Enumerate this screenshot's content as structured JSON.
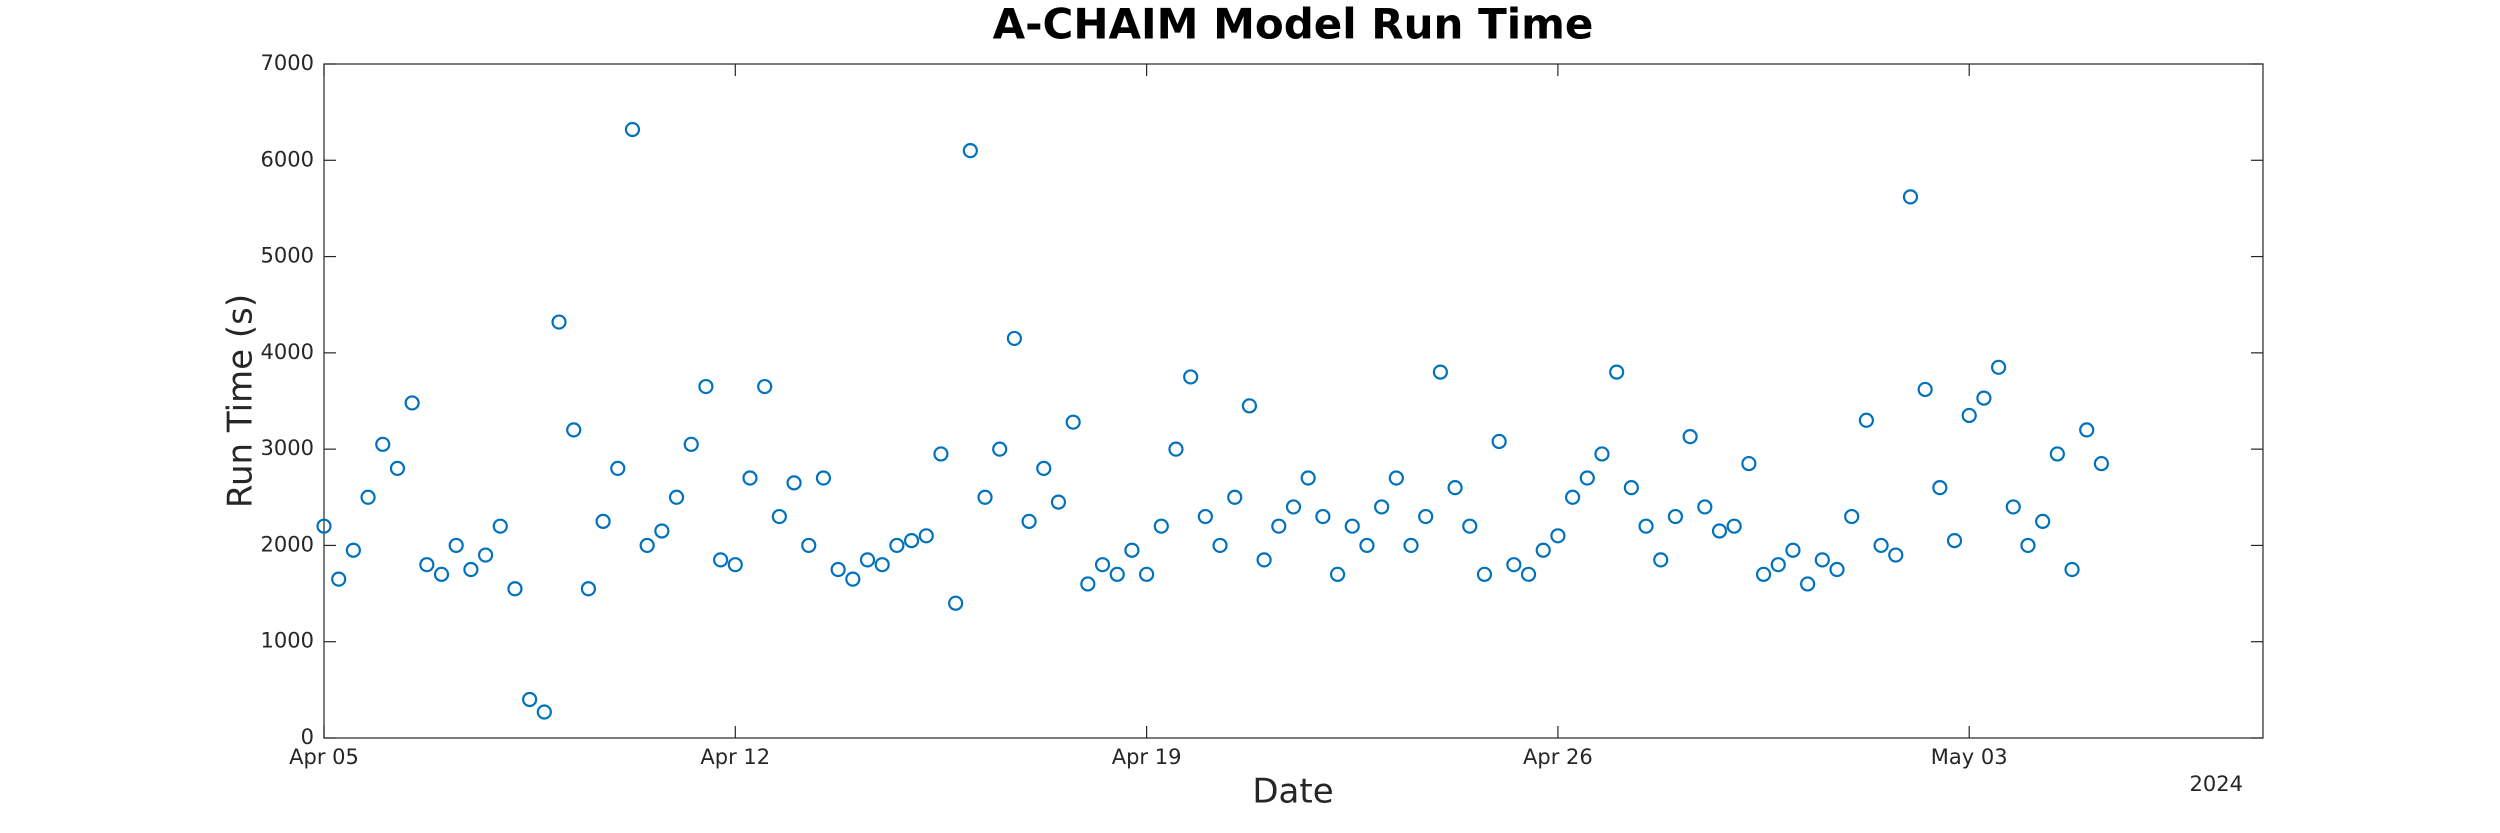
{
  "chart_data": {
    "type": "scatter",
    "title": "A-CHAIM Model Run Time",
    "x_label": "Date",
    "y_label": "Run Time (s)",
    "x_year_label": "2024",
    "color": "#0072bd",
    "grid": false,
    "xlim": [
      "2024-04-05T00:00",
      "2024-05-08T00:00"
    ],
    "xticks": [
      {
        "value": "2024-04-05T00:00",
        "label": "Apr 05"
      },
      {
        "value": "2024-04-12T00:00",
        "label": "Apr 12"
      },
      {
        "value": "2024-04-19T00:00",
        "label": "Apr 19"
      },
      {
        "value": "2024-04-26T00:00",
        "label": "Apr 26"
      },
      {
        "value": "2024-05-03T00:00",
        "label": "May 03"
      }
    ],
    "ylim": [
      0,
      7000
    ],
    "yticks": [
      0,
      1000,
      2000,
      3000,
      4000,
      5000,
      6000,
      7000
    ],
    "x": [
      "2024-04-05T00:00",
      "2024-04-05T06:00",
      "2024-04-05T12:00",
      "2024-04-05T18:00",
      "2024-04-06T00:00",
      "2024-04-06T06:00",
      "2024-04-06T12:00",
      "2024-04-06T18:00",
      "2024-04-07T00:00",
      "2024-04-07T06:00",
      "2024-04-07T12:00",
      "2024-04-07T18:00",
      "2024-04-08T00:00",
      "2024-04-08T06:00",
      "2024-04-08T12:00",
      "2024-04-08T18:00",
      "2024-04-09T00:00",
      "2024-04-09T06:00",
      "2024-04-09T12:00",
      "2024-04-09T18:00",
      "2024-04-10T00:00",
      "2024-04-10T06:00",
      "2024-04-10T12:00",
      "2024-04-10T18:00",
      "2024-04-11T00:00",
      "2024-04-11T06:00",
      "2024-04-11T12:00",
      "2024-04-11T18:00",
      "2024-04-12T00:00",
      "2024-04-12T06:00",
      "2024-04-12T12:00",
      "2024-04-12T18:00",
      "2024-04-13T00:00",
      "2024-04-13T06:00",
      "2024-04-13T12:00",
      "2024-04-13T18:00",
      "2024-04-14T00:00",
      "2024-04-14T06:00",
      "2024-04-14T12:00",
      "2024-04-14T18:00",
      "2024-04-15T00:00",
      "2024-04-15T06:00",
      "2024-04-15T12:00",
      "2024-04-15T18:00",
      "2024-04-16T00:00",
      "2024-04-16T06:00",
      "2024-04-16T12:00",
      "2024-04-16T18:00",
      "2024-04-17T00:00",
      "2024-04-17T06:00",
      "2024-04-17T12:00",
      "2024-04-17T18:00",
      "2024-04-18T00:00",
      "2024-04-18T06:00",
      "2024-04-18T12:00",
      "2024-04-18T18:00",
      "2024-04-19T00:00",
      "2024-04-19T06:00",
      "2024-04-19T12:00",
      "2024-04-19T18:00",
      "2024-04-20T00:00",
      "2024-04-20T06:00",
      "2024-04-20T12:00",
      "2024-04-20T18:00",
      "2024-04-21T00:00",
      "2024-04-21T06:00",
      "2024-04-21T12:00",
      "2024-04-21T18:00",
      "2024-04-22T00:00",
      "2024-04-22T06:00",
      "2024-04-22T12:00",
      "2024-04-22T18:00",
      "2024-04-23T00:00",
      "2024-04-23T06:00",
      "2024-04-23T12:00",
      "2024-04-23T18:00",
      "2024-04-24T00:00",
      "2024-04-24T06:00",
      "2024-04-24T12:00",
      "2024-04-24T18:00",
      "2024-04-25T00:00",
      "2024-04-25T06:00",
      "2024-04-25T12:00",
      "2024-04-25T18:00",
      "2024-04-26T00:00",
      "2024-04-26T06:00",
      "2024-04-26T12:00",
      "2024-04-26T18:00",
      "2024-04-27T00:00",
      "2024-04-27T06:00",
      "2024-04-27T12:00",
      "2024-04-27T18:00",
      "2024-04-28T00:00",
      "2024-04-28T06:00",
      "2024-04-28T12:00",
      "2024-04-28T18:00",
      "2024-04-29T00:00",
      "2024-04-29T06:00",
      "2024-04-29T12:00",
      "2024-04-29T18:00",
      "2024-04-30T00:00",
      "2024-04-30T06:00",
      "2024-04-30T12:00",
      "2024-04-30T18:00",
      "2024-05-01T00:00",
      "2024-05-01T06:00",
      "2024-05-01T12:00",
      "2024-05-01T18:00",
      "2024-05-02T00:00",
      "2024-05-02T06:00",
      "2024-05-02T12:00",
      "2024-05-02T18:00",
      "2024-05-03T00:00",
      "2024-05-03T06:00",
      "2024-05-03T12:00",
      "2024-05-03T18:00",
      "2024-05-04T00:00",
      "2024-05-04T06:00",
      "2024-05-04T12:00",
      "2024-05-04T18:00",
      "2024-05-05T00:00",
      "2024-05-05T06:00"
    ],
    "values": [
      2200,
      1650,
      1950,
      2500,
      3050,
      2800,
      3480,
      1800,
      1700,
      2000,
      1750,
      1900,
      2200,
      1550,
      400,
      270,
      4320,
      3200,
      1550,
      2250,
      2800,
      6320,
      2000,
      2150,
      2500,
      3050,
      3650,
      1850,
      1800,
      2700,
      3650,
      2300,
      2650,
      2000,
      2700,
      1750,
      1650,
      1850,
      1800,
      2000,
      2050,
      2100,
      2950,
      1400,
      6100,
      2500,
      3000,
      4150,
      2250,
      2800,
      2450,
      3280,
      1600,
      1800,
      1700,
      1950,
      1700,
      2200,
      3000,
      3750,
      2300,
      2000,
      2500,
      3450,
      1850,
      2200,
      2400,
      2700,
      2300,
      1700,
      2200,
      2000,
      2400,
      2700,
      2000,
      2300,
      3800,
      2600,
      2200,
      1700,
      3080,
      1800,
      1700,
      1950,
      2100,
      2500,
      2700,
      2950,
      3800,
      2600,
      2200,
      1850,
      2300,
      3130,
      2400,
      2150,
      2200,
      2850,
      1700,
      1800,
      1950,
      1600,
      1850,
      1750,
      2300,
      3300,
      2000,
      1900,
      5620,
      3620,
      2600,
      2050,
      3350,
      3530,
      3850,
      2400,
      2000,
      2250,
      2950,
      1750,
      3200,
      2850
    ]
  }
}
